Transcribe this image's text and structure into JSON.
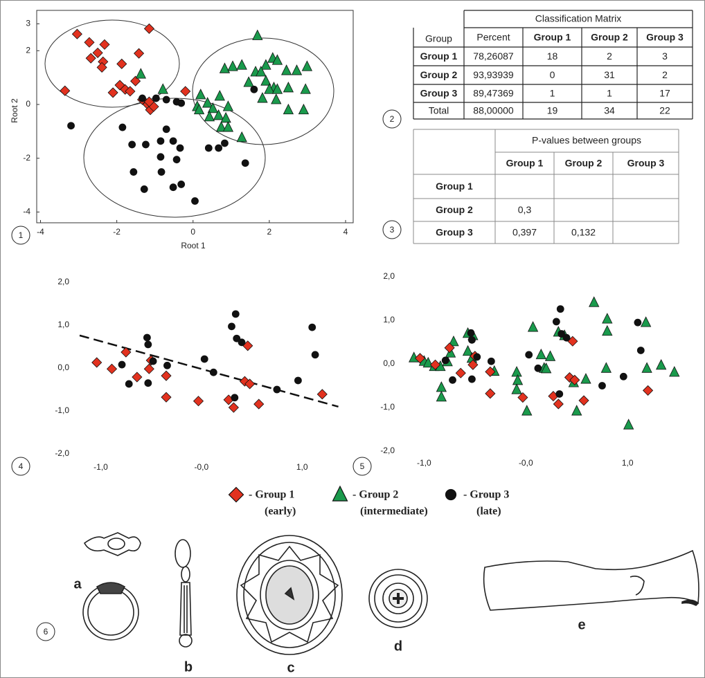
{
  "chart_data": [
    {
      "type": "scatter",
      "x_label": "Root 1",
      "y_label": "Root 2",
      "frame": true,
      "xlim": [
        -4.1,
        4.2
      ],
      "ylim": [
        -4.4,
        3.5
      ],
      "xticks": [
        -4,
        -2,
        0,
        2,
        4
      ],
      "yticks": [
        -4,
        -2,
        0,
        2,
        3
      ],
      "series": [
        {
          "marker": "diamond",
          "color": "#e2321f",
          "x": [
            -3.04,
            -2.72,
            -2.5,
            -2.32,
            -2.36,
            -2.39,
            -2.68,
            -1.87,
            -1.15,
            -1.42,
            -3.36,
            -2.1,
            -1.92,
            -1.78,
            -1.65,
            -1.51,
            -1.33,
            -1.19,
            -1.12,
            -1.03,
            -1.15,
            -0.2
          ],
          "values": [
            2.62,
            2.31,
            1.92,
            2.23,
            1.59,
            1.38,
            1.72,
            1.51,
            2.82,
            1.9,
            0.51,
            0.44,
            0.72,
            0.56,
            0.49,
            0.87,
            0.18,
            0,
            -0.2,
            -0.08,
            0.1,
            0.49
          ]
        },
        {
          "marker": "triangle",
          "color": "#1a9a4c",
          "x": [
            1.69,
            0.83,
            1.04,
            1.28,
            1.64,
            1.91,
            2.09,
            2.21,
            2.45,
            2.72,
            2.99,
            1.78,
            1.46,
            1.91,
            2.12,
            2.0,
            2.21,
            2.5,
            2.95,
            1.82,
            2.18,
            2.5,
            2.9,
            0.2,
            0.7,
            0.92,
            0.38,
            0.11,
            0.16,
            0.52,
            0.67,
            0.86,
            0.43,
            0.74,
            0.92,
            1.28,
            -0.79,
            -1.37
          ],
          "values": [
            2.56,
            1.33,
            1.41,
            1.46,
            1.21,
            1.46,
            1.72,
            1.64,
            1.26,
            1.26,
            1.41,
            1.21,
            0.82,
            0.87,
            0.62,
            0.56,
            0.56,
            0.62,
            0.56,
            0.23,
            0.18,
            -0.2,
            -0.2,
            0.36,
            0.31,
            -0.08,
            0.05,
            -0.08,
            -0.2,
            -0.15,
            -0.41,
            -0.51,
            -0.46,
            -0.85,
            -0.85,
            -1.23,
            0.56,
            1.13
          ]
        },
        {
          "marker": "circle",
          "color": "#111111",
          "x": [
            -3.2,
            -1.85,
            -0.7,
            -1.33,
            -0.97,
            -0.7,
            -0.43,
            -0.31,
            -0.85,
            -0.52,
            -1.24,
            -1.6,
            -0.85,
            -0.34,
            -0.43,
            -1.56,
            -0.83,
            -1.28,
            -0.52,
            -0.31,
            0.05,
            0.41,
            0.67,
            0.83,
            1.37,
            1.6
          ],
          "values": [
            -0.79,
            -0.85,
            -0.92,
            0.23,
            0.23,
            0.18,
            0.1,
            0.05,
            -1.36,
            -1.36,
            -1.49,
            -1.49,
            -1.95,
            -1.62,
            -2.05,
            -2.51,
            -2.51,
            -3.15,
            -3.08,
            -2.97,
            -3.59,
            -1.62,
            -1.62,
            -1.44,
            -2.18,
            0.56
          ]
        }
      ]
    },
    {
      "type": "scatter",
      "frame": false,
      "xlim": [
        -1.21,
        1.37
      ],
      "ylim": [
        -2,
        2
      ],
      "xticks": [
        {
          "value": -1,
          "label": "-1,0"
        },
        {
          "value": 0,
          "label": "-0,0"
        },
        {
          "value": 1,
          "label": "1,0"
        }
      ],
      "yticks": [
        {
          "value": 2,
          "label": "2,0"
        },
        {
          "value": 1,
          "label": "1,0"
        },
        {
          "value": 0,
          "label": "0,0"
        },
        {
          "value": -1,
          "label": "-1,0"
        },
        {
          "value": -2,
          "label": "-2,0"
        }
      ],
      "trend_line": {
        "x": [
          -1.21,
          1.36
        ],
        "values": [
          0.76,
          -0.9
        ]
      },
      "series": [
        {
          "marker": "diamond",
          "color": "#e2321f",
          "x": [
            -1.04,
            -0.89,
            -0.75,
            -0.64,
            -0.52,
            -0.5,
            -0.35,
            -0.35,
            -0.03,
            0.27,
            0.32,
            0.46,
            0.43,
            0.48,
            0.57,
            1.2
          ],
          "values": [
            0.13,
            -0.02,
            0.37,
            -0.21,
            -0.02,
            0.18,
            -0.18,
            -0.68,
            -0.77,
            -0.74,
            -0.92,
            0.52,
            -0.31,
            -0.37,
            -0.84,
            -0.61
          ]
        },
        {
          "marker": "circle",
          "color": "#111111",
          "x": [
            -0.79,
            -0.72,
            -0.54,
            -0.53,
            -0.48,
            -0.53,
            -0.34,
            0.03,
            0.12,
            0.3,
            0.34,
            0.35,
            0.4,
            0.33,
            0.75,
            0.96,
            1.1,
            1.13
          ],
          "values": [
            0.08,
            -0.37,
            0.71,
            0.55,
            0.16,
            -0.35,
            0.06,
            0.21,
            -0.1,
            0.97,
            1.26,
            0.69,
            0.6,
            -0.69,
            -0.5,
            -0.29,
            0.95,
            0.31
          ]
        }
      ]
    },
    {
      "type": "scatter",
      "frame": false,
      "xlim": [
        -1.2,
        1.55
      ],
      "ylim": [
        -2,
        2
      ],
      "xticks": [
        {
          "value": -1,
          "label": "-1,0"
        },
        {
          "value": 0,
          "label": "-0,0"
        },
        {
          "value": 1,
          "label": "1,0"
        }
      ],
      "yticks": [
        {
          "value": 2,
          "label": "2,0"
        },
        {
          "value": 1,
          "label": "1,0"
        },
        {
          "value": 0,
          "label": "0,0"
        },
        {
          "value": -1,
          "label": "-1,0"
        },
        {
          "value": -2,
          "label": "-2,0"
        }
      ],
      "series": [
        {
          "marker": "triangle",
          "color": "#1a9a4c",
          "x": [
            -1.1,
            -1.0,
            -0.96,
            -0.9,
            -0.84,
            -0.83,
            -0.83,
            -0.77,
            -0.74,
            -0.71,
            -0.57,
            -0.57,
            -0.52,
            -0.53,
            -0.31,
            -0.09,
            -0.08,
            -0.09,
            0.01,
            0.07,
            0.15,
            0.18,
            0.2,
            0.24,
            0.32,
            0.38,
            0.47,
            0.5,
            0.59,
            0.67,
            0.8,
            0.8,
            0.79,
            1.01,
            1.18,
            1.19,
            1.33,
            1.46
          ],
          "values": [
            0.14,
            0.06,
            0.02,
            -0.06,
            -0.06,
            -0.54,
            -0.76,
            0.05,
            0.25,
            0.51,
            0.29,
            0.7,
            0.65,
            0.13,
            -0.17,
            -0.19,
            -0.38,
            -0.59,
            -1.08,
            0.84,
            0.21,
            -0.1,
            -0.11,
            0.17,
            0.73,
            0.65,
            -0.43,
            -1.08,
            -0.35,
            1.41,
            1.03,
            0.75,
            -0.1,
            -1.4,
            0.95,
            -0.1,
            -0.03,
            -0.19
          ]
        },
        {
          "marker": "diamond",
          "color": "#e2321f",
          "x": [
            -1.04,
            -0.89,
            -0.75,
            -0.64,
            -0.52,
            -0.5,
            -0.35,
            -0.35,
            -0.03,
            0.27,
            0.32,
            0.46,
            0.43,
            0.48,
            0.57,
            1.2
          ],
          "values": [
            0.13,
            -0.02,
            0.37,
            -0.21,
            -0.02,
            0.18,
            -0.18,
            -0.68,
            -0.77,
            -0.74,
            -0.92,
            0.52,
            -0.31,
            -0.37,
            -0.84,
            -0.61
          ]
        },
        {
          "marker": "circle",
          "color": "#111111",
          "x": [
            -0.79,
            -0.72,
            -0.54,
            -0.53,
            -0.48,
            -0.53,
            -0.34,
            0.03,
            0.12,
            0.3,
            0.34,
            0.35,
            0.4,
            0.33,
            0.75,
            0.96,
            1.1,
            1.13
          ],
          "values": [
            0.08,
            -0.37,
            0.71,
            0.55,
            0.16,
            -0.35,
            0.06,
            0.21,
            -0.1,
            0.97,
            1.26,
            0.69,
            0.6,
            -0.69,
            -0.5,
            -0.29,
            0.95,
            0.31
          ]
        }
      ]
    }
  ],
  "classification_matrix": {
    "title": "Classification Matrix",
    "header": [
      "Group",
      "Percent",
      "Group 1",
      "Group 2",
      "Group 3"
    ],
    "rows": [
      [
        "Group 1",
        "78,26087",
        "18",
        "2",
        "3"
      ],
      [
        "Group 2",
        "93,93939",
        "0",
        "31",
        "2"
      ],
      [
        "Group 3",
        "89,47369",
        "1",
        "1",
        "17"
      ],
      [
        "Total",
        "88,00000",
        "19",
        "34",
        "22"
      ]
    ]
  },
  "p_values": {
    "title": "P-values between groups",
    "header": [
      "Group 1",
      "Group 2",
      "Group 3"
    ],
    "rows": [
      [
        "Group 1"
      ],
      [
        "Group 2",
        "0,3"
      ],
      [
        "Group 3",
        "0,397",
        "0,132"
      ]
    ]
  },
  "legend": [
    {
      "label": "- Group 1",
      "note": "(early)",
      "marker": "diamond",
      "color": "#e2321f"
    },
    {
      "label": "- Group 2",
      "note": "(intermediate)",
      "marker": "triangle",
      "color": "#1a9a4c"
    },
    {
      "label": "- Group 3",
      "note": "(late)",
      "marker": "circle",
      "color": "#111111"
    }
  ],
  "panel_labels": [
    "1",
    "2",
    "3",
    "4",
    "5",
    "6"
  ],
  "artifact_labels": [
    "a",
    "b",
    "c",
    "d",
    "e"
  ]
}
